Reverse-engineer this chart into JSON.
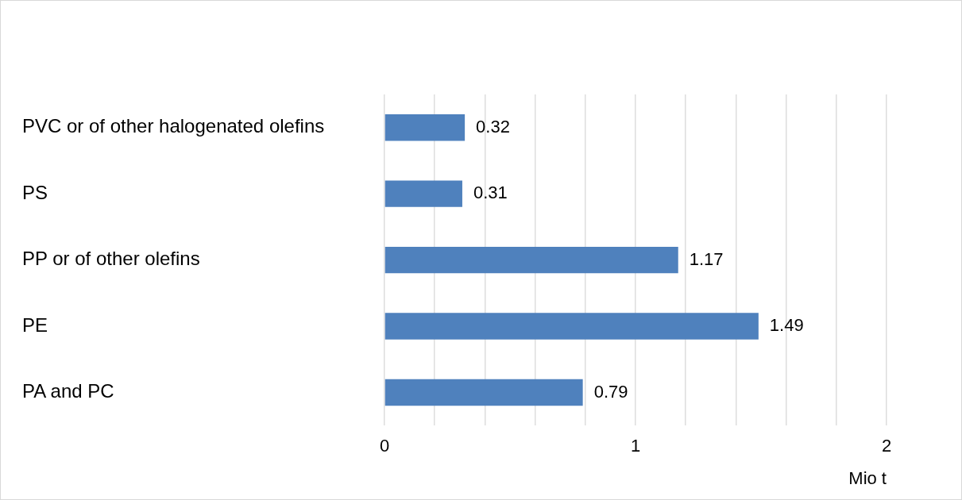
{
  "chart_data": {
    "type": "bar",
    "orientation": "horizontal",
    "xlabel": "Mio t",
    "categories": [
      "PVC or of other halogenated olefins",
      "PS",
      "PP or of other olefins",
      "PE",
      "PA and PC"
    ],
    "values": [
      0.32,
      0.31,
      1.17,
      1.49,
      0.79
    ],
    "color": "#4f81bd",
    "xlim": [
      0,
      2
    ],
    "xticks": [
      0,
      {
        "value": 0.2,
        "label": null
      },
      {
        "value": 0.4,
        "label": null
      },
      {
        "value": 0.6,
        "label": null
      },
      {
        "value": 0.8,
        "label": null
      },
      1,
      {
        "value": 1.2,
        "label": null
      },
      {
        "value": 1.4,
        "label": null
      },
      {
        "value": 1.6,
        "label": null
      },
      {
        "value": 1.8,
        "label": null
      },
      2
    ],
    "grid": "x",
    "data_labels": true,
    "legend": false
  }
}
